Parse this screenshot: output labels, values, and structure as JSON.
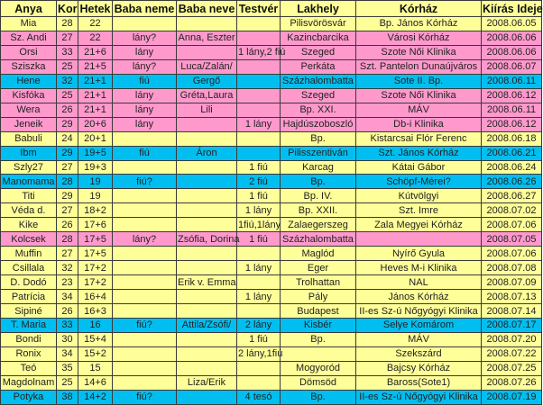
{
  "table": {
    "colors": {
      "yellow": "#FFFF99",
      "pink": "#FF99CC",
      "cyan": "#00BFF0",
      "border": "#3a3a3a",
      "text": "#222222"
    },
    "header_color": "yellow",
    "columns": [
      {
        "key": "anya",
        "label": "Anya",
        "width": 62
      },
      {
        "key": "kor",
        "label": "Kor",
        "width": 24
      },
      {
        "key": "hetek",
        "label": "Hetek",
        "width": 38
      },
      {
        "key": "baba-neme",
        "label": "Baba neme",
        "width": 71
      },
      {
        "key": "baba-neve",
        "label": "Baba neve",
        "width": 67
      },
      {
        "key": "testver",
        "label": "Testvér",
        "width": 48
      },
      {
        "key": "lakhely",
        "label": "Lakhely",
        "width": 84
      },
      {
        "key": "korhaz",
        "label": "Kórház",
        "width": 139
      },
      {
        "key": "kiiras-ideje",
        "label": "Kiírás Ideje",
        "width": 67
      }
    ],
    "rows": [
      {
        "color": "yellow",
        "cells": [
          "Mia",
          "28",
          "22",
          "",
          "",
          "",
          "Pilisvörösvár",
          "Bp. János Kórház",
          "2008.06.05"
        ]
      },
      {
        "color": "pink",
        "cells": [
          "Sz. Andi",
          "27",
          "22",
          "lány?",
          "Anna, Eszter",
          "",
          "Kazincbarcika",
          "Városi Kórház",
          "2008.06.06"
        ]
      },
      {
        "color": "pink",
        "cells": [
          "Orsi",
          "33",
          "21+6",
          "lány",
          "",
          "1 lány,2 fiú",
          "Szeged",
          "Szote Női Klinika",
          "2008.06.06"
        ]
      },
      {
        "color": "pink",
        "cells": [
          "Sziszka",
          "25",
          "21+5",
          "lány?",
          "Luca/Zalán/",
          "",
          "Perkáta",
          "Szt. Pantelon Dunaújváros",
          "2008.06.07"
        ]
      },
      {
        "color": "cyan",
        "cells": [
          "Hene",
          "32",
          "21+1",
          "fiú",
          "Gergő",
          "",
          "Százhalombatta",
          "Sote II. Bp.",
          "2008.06.11"
        ]
      },
      {
        "color": "pink",
        "cells": [
          "Kisfóka",
          "25",
          "21+1",
          "lány",
          "Gréta,Laura",
          "",
          "Szeged",
          "Szote Női Klinika",
          "2008.06.12"
        ]
      },
      {
        "color": "pink",
        "cells": [
          "Wera",
          "26",
          "21+1",
          "lány",
          "Lili",
          "",
          "Bp. XXI.",
          "MÁV",
          "2008.06.11"
        ]
      },
      {
        "color": "pink",
        "cells": [
          "Jeneik",
          "29",
          "20+6",
          "lány",
          "",
          "1 lány",
          "Hajdúszoboszló",
          "Db-i Klinika",
          "2008.06.12"
        ]
      },
      {
        "color": "yellow",
        "cells": [
          "Babuli",
          "24",
          "20+1",
          "",
          "",
          "",
          "Bp.",
          "Kistarcsai Flór Ferenc",
          "2008.06.18"
        ]
      },
      {
        "color": "cyan",
        "cells": [
          "Ibm",
          "29",
          "19+5",
          "fiú",
          "Áron",
          "",
          "Pilisszentiván",
          "Szt. János Kórház",
          "2008.06.21"
        ]
      },
      {
        "color": "yellow",
        "cells": [
          "Szly27",
          "27",
          "19+3",
          "",
          "",
          "1 fiú",
          "Karcag",
          "Kátai Gábor",
          "2008.06.24"
        ]
      },
      {
        "color": "cyan",
        "cells": [
          "Manomama",
          "28",
          "19",
          "fiú?",
          "",
          "2 fiú",
          "Bp.",
          "Schöpf-Mérei?",
          "2008.06.26"
        ]
      },
      {
        "color": "yellow",
        "cells": [
          "Titi",
          "29",
          "19",
          "",
          "",
          "1 fiú",
          "Bp. IV.",
          "Kútvölgyi",
          "2008.06.27"
        ]
      },
      {
        "color": "yellow",
        "cells": [
          "Véda d.",
          "27",
          "18+2",
          "",
          "",
          "1 lány",
          "Bp. XXII.",
          "Szt. Imre",
          "2008.07.02"
        ]
      },
      {
        "color": "yellow",
        "cells": [
          "Kike",
          "26",
          "17+6",
          "",
          "",
          "1fiú,1lány",
          "Zalaegerszeg",
          "Zala Megyei Kórház",
          "2008.07.06"
        ]
      },
      {
        "color": "pink",
        "cells": [
          "Kolcsek",
          "28",
          "17+5",
          "lány?",
          "Zsófia, Dorina",
          "1 fiú",
          "Százhalombatta",
          "",
          "2008.07.05"
        ]
      },
      {
        "color": "yellow",
        "cells": [
          "Muffin",
          "27",
          "17+5",
          "",
          "",
          "",
          "Maglód",
          "Nyírő Gyula",
          "2008.07.06"
        ]
      },
      {
        "color": "yellow",
        "cells": [
          "Csillala",
          "32",
          "17+2",
          "",
          "",
          "1 lány",
          "Eger",
          "Heves M-i Klinika",
          "2008.07.08"
        ]
      },
      {
        "color": "yellow",
        "cells": [
          "D. Dodó",
          "23",
          "17+2",
          "",
          "Erik v. Emma",
          "",
          "Trolhattan",
          "NAL",
          "2008.07.09"
        ]
      },
      {
        "color": "yellow",
        "cells": [
          "Patrícia",
          "34",
          "16+4",
          "",
          "",
          "1 lány",
          "Pály",
          "János Kórház",
          "2008.07.13"
        ]
      },
      {
        "color": "yellow",
        "cells": [
          "Sipiné",
          "26",
          "16+3",
          "",
          "",
          "",
          "Budapest",
          "II-es Sz-ú Nőgyógyi Klinika",
          "2008.07.14"
        ]
      },
      {
        "color": "cyan",
        "cells": [
          "T. Maria",
          "33",
          "16",
          "fiú?",
          "Attila/Zsófi/",
          "2 lány",
          "Kisbér",
          "Selye Komárom",
          "2008.07.17"
        ]
      },
      {
        "color": "yellow",
        "cells": [
          "Bondi",
          "30",
          "15+4",
          "",
          "",
          "1 fiú",
          "Bp.",
          "MÁV",
          "2008.07.20"
        ]
      },
      {
        "color": "yellow",
        "cells": [
          "Ronix",
          "34",
          "15+2",
          "",
          "",
          "2 lány,1fiú",
          "",
          "Szekszárd",
          "2008.07.22"
        ]
      },
      {
        "color": "yellow",
        "cells": [
          "Teó",
          "35",
          "15",
          "",
          "",
          "",
          "Mogyoród",
          "Bajcsy Kórház",
          "2008.07.25"
        ]
      },
      {
        "color": "yellow",
        "cells": [
          "Magdolnam",
          "25",
          "14+6",
          "",
          "Liza/Erik",
          "",
          "Dömsöd",
          "Baross(Sote1)",
          "2008.07.26"
        ]
      },
      {
        "color": "cyan",
        "cells": [
          "Potyka",
          "38",
          "14+2",
          "fiú?",
          "",
          "4 tesó",
          "Bp.",
          "II-es Sz-ú Nőgyógyi Klinika",
          "2008.07.19"
        ]
      }
    ]
  }
}
